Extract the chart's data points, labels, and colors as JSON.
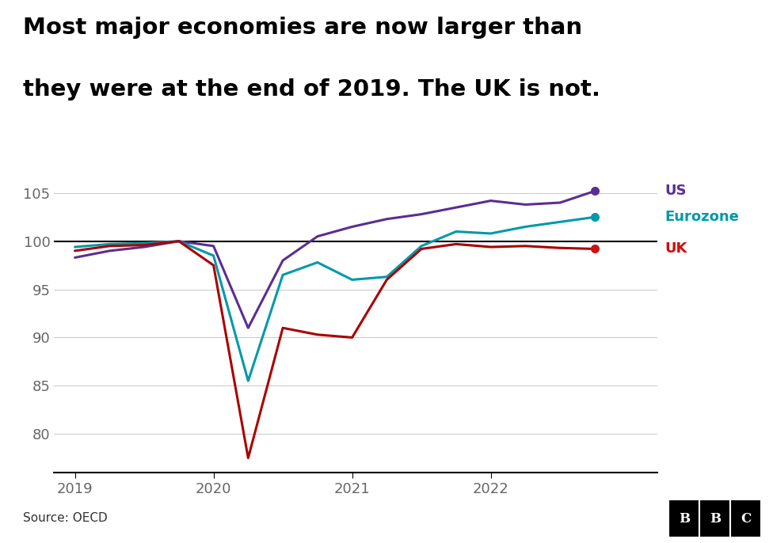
{
  "title_line1": "Most major economies are now larger than",
  "title_line2": "they were at the end of 2019. The UK is not.",
  "source": "Source: OECD",
  "ylim": [
    76,
    107
  ],
  "yticks": [
    80,
    85,
    90,
    95,
    100,
    105
  ],
  "xticks": [
    2019.0,
    2020.0,
    2021.0,
    2022.0
  ],
  "xlim": [
    2018.85,
    2023.2
  ],
  "reference_line": 100,
  "series": {
    "US": {
      "color": "#5c2d91",
      "dot_color": "#5c2d91",
      "label": "US",
      "x": [
        2019.0,
        2019.25,
        2019.5,
        2019.75,
        2020.0,
        2020.25,
        2020.5,
        2020.75,
        2021.0,
        2021.25,
        2021.5,
        2021.75,
        2022.0,
        2022.25,
        2022.5,
        2022.75
      ],
      "y": [
        98.3,
        99.0,
        99.4,
        100.0,
        99.5,
        91.0,
        98.0,
        100.5,
        101.5,
        102.3,
        102.8,
        103.5,
        104.2,
        103.8,
        104.0,
        105.2
      ]
    },
    "Eurozone": {
      "color": "#0099aa",
      "dot_color": "#0099aa",
      "label": "Eurozone",
      "x": [
        2019.0,
        2019.25,
        2019.5,
        2019.75,
        2020.0,
        2020.25,
        2020.5,
        2020.75,
        2021.0,
        2021.25,
        2021.5,
        2021.75,
        2022.0,
        2022.25,
        2022.5,
        2022.75
      ],
      "y": [
        99.4,
        99.7,
        99.8,
        100.0,
        98.5,
        85.5,
        96.5,
        97.8,
        96.0,
        96.3,
        99.5,
        101.0,
        100.8,
        101.5,
        102.0,
        102.5
      ]
    },
    "UK": {
      "color": "#aa0000",
      "dot_color": "#cc1111",
      "label": "UK",
      "x": [
        2019.0,
        2019.25,
        2019.5,
        2019.75,
        2020.0,
        2020.25,
        2020.5,
        2020.75,
        2021.0,
        2021.25,
        2021.5,
        2021.75,
        2022.0,
        2022.25,
        2022.5,
        2022.75
      ],
      "y": [
        99.0,
        99.5,
        99.6,
        100.0,
        97.5,
        77.5,
        91.0,
        90.3,
        90.0,
        96.0,
        99.2,
        99.7,
        99.4,
        99.5,
        99.3,
        99.2
      ]
    }
  },
  "background_color": "#ffffff",
  "grid_color": "#cccccc",
  "title_fontsize": 21,
  "label_fontsize": 13,
  "tick_fontsize": 13,
  "source_fontsize": 11,
  "line_width": 2.2
}
